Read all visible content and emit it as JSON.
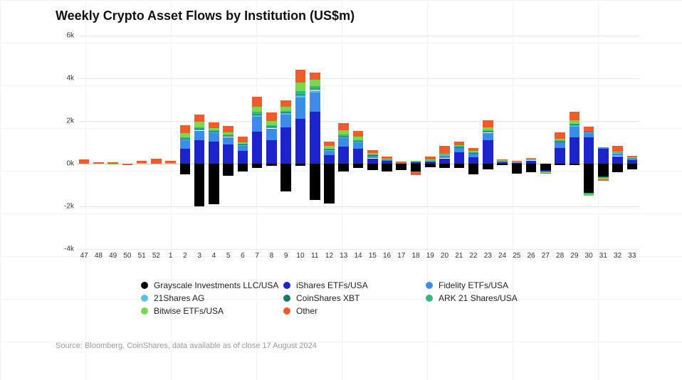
{
  "title": "Weekly Crypto Asset Flows by Institution (US$m)",
  "source": "Source: Bloomberg, CoinShares, data available as of close 17 August 2024",
  "style": {
    "background_color": "#ffffff",
    "gridline_color": "#e8e8e8",
    "zero_line_color": "#cccccc",
    "title_fontsize": 18,
    "axis_label_fontsize": 10,
    "legend_fontsize": 12,
    "source_color": "#999999",
    "text_color": "#111111"
  },
  "chart": {
    "type": "stacked-bar-diverging",
    "ylim": [
      -4000,
      6000
    ],
    "ytick_step": 2000,
    "yticks": [
      -4000,
      -2000,
      0,
      2000,
      4000,
      6000
    ],
    "ytick_labels": [
      "-4k",
      "-2k",
      "0k",
      "2k",
      "4k",
      "6k"
    ],
    "bar_width_ratio": 0.72,
    "x_categories": [
      "47",
      "48",
      "49",
      "50",
      "51",
      "52",
      "1",
      "2",
      "3",
      "4",
      "5",
      "6",
      "7",
      "8",
      "9",
      "10",
      "11",
      "12",
      "13",
      "14",
      "15",
      "16",
      "17",
      "18",
      "19",
      "20",
      "21",
      "22",
      "23",
      "24",
      "25",
      "26",
      "27",
      "28",
      "29",
      "30",
      "31",
      "32",
      "33"
    ],
    "series": [
      {
        "key": "grayscale",
        "label": "Grayscale Investments LLC/USA",
        "color": "#000000"
      },
      {
        "key": "ishares",
        "label": "iShares ETFs/USA",
        "color": "#1e24cc"
      },
      {
        "key": "fidelity",
        "label": "Fidelity ETFs/USA",
        "color": "#3b8de8"
      },
      {
        "key": "twentyone",
        "label": "21Shares AG",
        "color": "#5cc0e6"
      },
      {
        "key": "coinshares",
        "label": "CoinShares XBT",
        "color": "#167a6a"
      },
      {
        "key": "ark21",
        "label": "ARK 21 Shares/USA",
        "color": "#30b883"
      },
      {
        "key": "bitwise",
        "label": "Bitwise ETFs/USA",
        "color": "#7ad84f"
      },
      {
        "key": "other",
        "label": "Other",
        "color": "#ef5b2a"
      }
    ],
    "stack_order_positive": [
      "grayscale",
      "ishares",
      "fidelity",
      "twentyone",
      "coinshares",
      "ark21",
      "bitwise",
      "other"
    ],
    "stack_order_negative": [
      "grayscale",
      "ishares",
      "fidelity",
      "twentyone",
      "coinshares",
      "ark21",
      "bitwise",
      "other"
    ],
    "data": [
      {
        "x": "47",
        "grayscale": 0,
        "ishares": 0,
        "fidelity": 0,
        "twentyone": 0,
        "coinshares": 0,
        "ark21": 0,
        "bitwise": 0,
        "other": 200
      },
      {
        "x": "48",
        "grayscale": 0,
        "ishares": 0,
        "fidelity": 0,
        "twentyone": 0,
        "coinshares": 0,
        "ark21": 0,
        "bitwise": 0,
        "other": 80
      },
      {
        "x": "49",
        "grayscale": 0,
        "ishares": 0,
        "fidelity": 0,
        "twentyone": 0,
        "coinshares": 0,
        "ark21": 0,
        "bitwise": -10,
        "other": 60
      },
      {
        "x": "50",
        "grayscale": 0,
        "ishares": 0,
        "fidelity": 0,
        "twentyone": 0,
        "coinshares": 0,
        "ark21": 0,
        "bitwise": 0,
        "other": -60
      },
      {
        "x": "51",
        "grayscale": 0,
        "ishares": 0,
        "fidelity": 0,
        "twentyone": 0,
        "coinshares": 0,
        "ark21": 0,
        "bitwise": 20,
        "other": 120
      },
      {
        "x": "52",
        "grayscale": 0,
        "ishares": 0,
        "fidelity": 0,
        "twentyone": 0,
        "coinshares": 0,
        "ark21": 0,
        "bitwise": 0,
        "other": 220
      },
      {
        "x": "1",
        "grayscale": 0,
        "ishares": 0,
        "fidelity": 0,
        "twentyone": 0,
        "coinshares": 0,
        "ark21": 0,
        "bitwise": 20,
        "other": 120
      },
      {
        "x": "2",
        "grayscale": -500,
        "ishares": 700,
        "fidelity": 400,
        "twentyone": 60,
        "coinshares": 20,
        "ark21": 60,
        "bitwise": 200,
        "other": 350
      },
      {
        "x": "3",
        "grayscale": -2000,
        "ishares": 1100,
        "fidelity": 450,
        "twentyone": 60,
        "coinshares": 20,
        "ark21": 80,
        "bitwise": 250,
        "other": 350
      },
      {
        "x": "4",
        "grayscale": -1900,
        "ishares": 1050,
        "fidelity": 400,
        "twentyone": 50,
        "coinshares": 10,
        "ark21": 60,
        "bitwise": 100,
        "other": 250
      },
      {
        "x": "5",
        "grayscale": -550,
        "ishares": 900,
        "fidelity": 350,
        "twentyone": 40,
        "coinshares": 10,
        "ark21": 60,
        "bitwise": 120,
        "other": 300
      },
      {
        "x": "6",
        "grayscale": -350,
        "ishares": 600,
        "fidelity": 250,
        "twentyone": 30,
        "coinshares": 10,
        "ark21": 40,
        "bitwise": 60,
        "other": 280
      },
      {
        "x": "7",
        "grayscale": -200,
        "ishares": 1500,
        "fidelity": 700,
        "twentyone": 80,
        "coinshares": 30,
        "ark21": 120,
        "bitwise": 250,
        "other": 450
      },
      {
        "x": "8",
        "grayscale": -100,
        "ishares": 1100,
        "fidelity": 550,
        "twentyone": 60,
        "coinshares": 20,
        "ark21": 80,
        "bitwise": 200,
        "other": 400
      },
      {
        "x": "9",
        "grayscale": -1300,
        "ishares": 1700,
        "fidelity": 600,
        "twentyone": 70,
        "coinshares": 30,
        "ark21": 60,
        "bitwise": 220,
        "other": 300
      },
      {
        "x": "10",
        "grayscale": -100,
        "ishares": 2100,
        "fidelity": 1000,
        "twentyone": 100,
        "coinshares": 40,
        "ark21": 160,
        "bitwise": 400,
        "other": 600
      },
      {
        "x": "11",
        "grayscale": -1700,
        "ishares": 2450,
        "fidelity": 900,
        "twentyone": 100,
        "coinshares": 40,
        "ark21": 140,
        "bitwise": 300,
        "other": 350
      },
      {
        "x": "12",
        "grayscale": -1850,
        "ishares": 400,
        "fidelity": 200,
        "twentyone": 50,
        "coinshares": 10,
        "ark21": 30,
        "bitwise": 150,
        "other": 200
      },
      {
        "x": "13",
        "grayscale": -350,
        "ishares": 800,
        "fidelity": 400,
        "twentyone": 60,
        "coinshares": 20,
        "ark21": 80,
        "bitwise": 200,
        "other": 350
      },
      {
        "x": "14",
        "grayscale": -200,
        "ishares": 700,
        "fidelity": 300,
        "twentyone": 50,
        "coinshares": 10,
        "ark21": 50,
        "bitwise": 150,
        "other": 280
      },
      {
        "x": "15",
        "grayscale": -300,
        "ishares": 250,
        "fidelity": 120,
        "twentyone": 30,
        "coinshares": 10,
        "ark21": 30,
        "bitwise": 60,
        "other": 150
      },
      {
        "x": "16",
        "grayscale": -350,
        "ishares": 150,
        "fidelity": 30,
        "twentyone": 10,
        "coinshares": 0,
        "ark21": 10,
        "bitwise": 20,
        "other": 100
      },
      {
        "x": "17",
        "grayscale": -300,
        "ishares": 0,
        "fidelity": 0,
        "twentyone": 0,
        "coinshares": 0,
        "ark21": 0,
        "bitwise": 10,
        "other": 80
      },
      {
        "x": "18",
        "grayscale": -350,
        "ishares": 60,
        "fidelity": 60,
        "twentyone": 10,
        "coinshares": 0,
        "ark21": -30,
        "bitwise": 20,
        "other": -150
      },
      {
        "x": "19",
        "grayscale": -150,
        "ishares": 100,
        "fidelity": 40,
        "twentyone": 10,
        "coinshares": 0,
        "ark21": 20,
        "bitwise": 20,
        "other": 150
      },
      {
        "x": "20",
        "grayscale": -200,
        "ishares": 250,
        "fidelity": 120,
        "twentyone": 20,
        "coinshares": 0,
        "ark21": 50,
        "bitwise": 40,
        "other": 350
      },
      {
        "x": "21",
        "grayscale": -200,
        "ishares": 550,
        "fidelity": 200,
        "twentyone": 20,
        "coinshares": 10,
        "ark21": 40,
        "bitwise": 50,
        "other": 180
      },
      {
        "x": "22",
        "grayscale": -500,
        "ishares": 300,
        "fidelity": 180,
        "twentyone": 20,
        "coinshares": 10,
        "ark21": 30,
        "bitwise": 50,
        "other": 150
      },
      {
        "x": "23",
        "grayscale": -250,
        "ishares": 1100,
        "fidelity": 350,
        "twentyone": 40,
        "coinshares": 10,
        "ark21": 80,
        "bitwise": 120,
        "other": 350
      },
      {
        "x": "24",
        "grayscale": -80,
        "ishares": 80,
        "fidelity": 40,
        "twentyone": 10,
        "coinshares": 0,
        "ark21": 10,
        "bitwise": 20,
        "other": 40
      },
      {
        "x": "25",
        "grayscale": -450,
        "ishares": 50,
        "fidelity": 30,
        "twentyone": 0,
        "coinshares": 0,
        "ark21": 0,
        "bitwise": 20,
        "other": 40
      },
      {
        "x": "26",
        "grayscale": -400,
        "ishares": 150,
        "fidelity": 40,
        "twentyone": 10,
        "coinshares": 0,
        "ark21": 10,
        "bitwise": 20,
        "other": 40
      },
      {
        "x": "27",
        "grayscale": -300,
        "ishares": -50,
        "fidelity": -30,
        "twentyone": -10,
        "coinshares": 0,
        "ark21": -10,
        "bitwise": -20,
        "other": -40
      },
      {
        "x": "28",
        "grayscale": -80,
        "ishares": 750,
        "fidelity": 250,
        "twentyone": 30,
        "coinshares": 10,
        "ark21": 50,
        "bitwise": 70,
        "other": 300
      },
      {
        "x": "29",
        "grayscale": -50,
        "ishares": 1250,
        "fidelity": 500,
        "twentyone": 50,
        "coinshares": 20,
        "ark21": 60,
        "bitwise": 140,
        "other": 420
      },
      {
        "x": "30",
        "grayscale": -1350,
        "ishares": 1250,
        "fidelity": 200,
        "twentyone": 30,
        "coinshares": 10,
        "ark21": -80,
        "bitwise": -80,
        "other": 250
      },
      {
        "x": "31",
        "grayscale": -600,
        "ishares": 700,
        "fidelity": 60,
        "twentyone": 0,
        "coinshares": -20,
        "ark21": -60,
        "bitwise": -60,
        "other": -60
      },
      {
        "x": "32",
        "grayscale": -400,
        "ishares": 350,
        "fidelity": 120,
        "twentyone": 20,
        "coinshares": 0,
        "ark21": 30,
        "bitwise": 50,
        "other": 280
      },
      {
        "x": "33",
        "grayscale": -260,
        "ishares": 180,
        "fidelity": 80,
        "twentyone": 10,
        "coinshares": 0,
        "ark21": 10,
        "bitwise": 30,
        "other": 70
      }
    ]
  }
}
